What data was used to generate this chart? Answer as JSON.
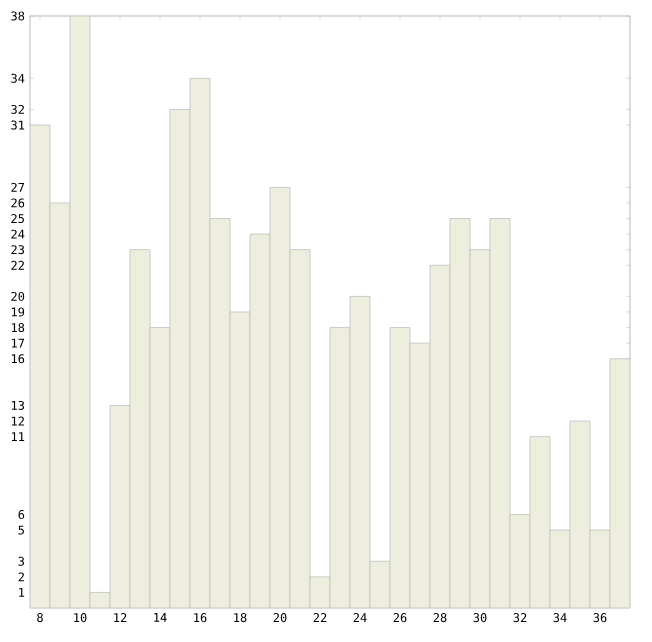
{
  "chart_data": {
    "type": "bar",
    "x": [
      8,
      9,
      10,
      11,
      12,
      13,
      14,
      15,
      16,
      17,
      18,
      19,
      20,
      21,
      22,
      23,
      24,
      25,
      26,
      27,
      28,
      29,
      30,
      31,
      32,
      33,
      34,
      35,
      36,
      37
    ],
    "values": [
      31,
      26,
      38,
      1,
      13,
      23,
      18,
      32,
      34,
      25,
      19,
      24,
      27,
      23,
      2,
      18,
      20,
      3,
      18,
      17,
      22,
      25,
      23,
      25,
      6,
      11,
      5,
      12,
      5,
      16
    ],
    "color": "#eeeedf",
    "xlim": [
      7.5,
      37.5
    ],
    "ylim": [
      0,
      38
    ],
    "xticks": [
      8,
      10,
      12,
      14,
      16,
      18,
      20,
      22,
      24,
      26,
      28,
      30,
      32,
      34,
      36
    ],
    "yticks": [
      1,
      2,
      3,
      5,
      6,
      11,
      12,
      13,
      16,
      17,
      18,
      19,
      20,
      22,
      23,
      24,
      25,
      26,
      27,
      31,
      32,
      34,
      38
    ],
    "grid": false
  }
}
